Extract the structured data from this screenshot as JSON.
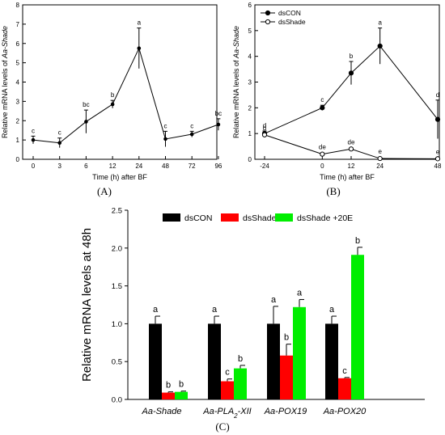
{
  "panels": {
    "A": "(A)",
    "B": "(B)",
    "C": "(C)"
  },
  "chart_data": [
    {
      "id": "A",
      "type": "line",
      "xlabel": "Time (h) after BF",
      "ylabel_prefix": "Relative mRNA levels of ",
      "ylabel_gene": "Aa-Shade",
      "ylim": [
        0,
        8
      ],
      "yticks": [
        0,
        1,
        2,
        3,
        4,
        5,
        6,
        7,
        8
      ],
      "categories": [
        "0",
        "3",
        "6",
        "12",
        "24",
        "48",
        "72",
        "96"
      ],
      "series": [
        {
          "marker": "filled",
          "values": [
            1.0,
            0.85,
            1.95,
            2.85,
            5.75,
            1.05,
            1.3,
            1.8
          ],
          "errors": [
            0.2,
            0.25,
            0.6,
            0.2,
            1.05,
            0.4,
            0.15,
            0.3
          ],
          "letters": [
            "c",
            "c",
            "bc",
            "b",
            "a",
            "c",
            "c",
            "bc"
          ]
        }
      ],
      "grid": false
    },
    {
      "id": "B",
      "type": "line",
      "xlabel": "Time (h) after BF",
      "ylabel_prefix": "Relative mRNA levels of ",
      "ylabel_gene": "Aa-Shade",
      "ylim": [
        0,
        6
      ],
      "yticks": [
        0,
        1,
        2,
        3,
        4,
        5,
        6
      ],
      "x": [
        -24,
        0,
        12,
        24,
        48
      ],
      "xticks": [
        "-24",
        "0",
        "12",
        "24",
        "48"
      ],
      "legend_position": "top-left",
      "series": [
        {
          "name": "dsCON",
          "marker": "filled",
          "values": [
            1.0,
            2.0,
            3.35,
            4.4,
            1.55
          ],
          "errors": [
            0.1,
            0.1,
            0.45,
            0.7,
            0.75
          ],
          "letters": [
            "d",
            "c",
            "b",
            "a",
            "d"
          ]
        },
        {
          "name": "dsShade",
          "marker": "open",
          "values": [
            0.95,
            0.2,
            0.4,
            0.03,
            0.02
          ],
          "errors": [
            0.1,
            0.05,
            0.05,
            0.02,
            0.02
          ],
          "letters": [
            "d",
            "de",
            "de",
            "e",
            "e"
          ]
        }
      ],
      "grid": false
    },
    {
      "id": "C",
      "type": "bar",
      "ylabel": "Relative mRNA levels at 48h",
      "ylim": [
        0,
        2.5
      ],
      "yticks": [
        "0.0",
        "0.5",
        "1.0",
        "1.5",
        "2.0",
        "2.5"
      ],
      "categories": [
        "Aa-Shade",
        "Aa-PLA2-XII",
        "Aa-POX19",
        "Aa-POX20"
      ],
      "legend_position": "top",
      "series": [
        {
          "name": "dsCON",
          "color": "#000000",
          "values": [
            1.0,
            1.0,
            1.0,
            1.0
          ],
          "errors": [
            0.1,
            0.1,
            0.23,
            0.1
          ],
          "letters": [
            "a",
            "a",
            "a",
            "a"
          ]
        },
        {
          "name": "dsShade",
          "color": "#ff0000",
          "values": [
            0.09,
            0.24,
            0.58,
            0.28
          ],
          "errors": [
            0.01,
            0.03,
            0.15,
            0.01
          ],
          "letters": [
            "b",
            "c",
            "b",
            "c"
          ]
        },
        {
          "name": "dsShade +20E",
          "color": "#00ee00",
          "values": [
            0.1,
            0.41,
            1.22,
            1.91
          ],
          "errors": [
            0.01,
            0.04,
            0.1,
            0.1
          ],
          "letters": [
            "b",
            "b",
            "a",
            "b"
          ]
        }
      ],
      "grid": false
    }
  ]
}
